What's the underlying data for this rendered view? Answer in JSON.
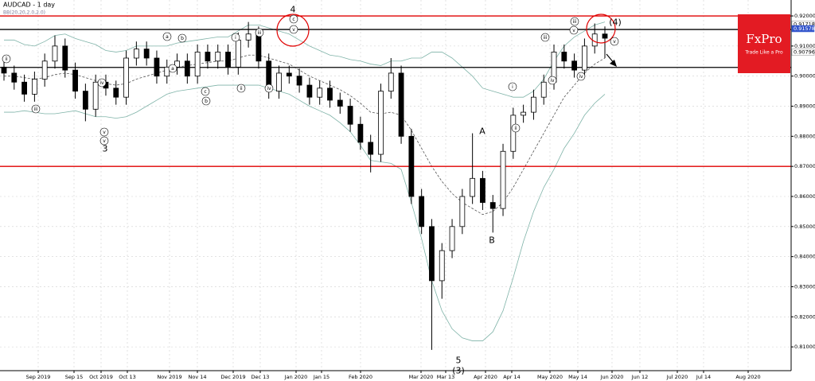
{
  "chart_data": {
    "type": "candlestick",
    "title": "AUDCAD - 1 day",
    "subtitle": "BB(20,20,2.0,2.0)",
    "logo": {
      "name": "FxPro",
      "tagline": "Trade Like a Pro"
    },
    "open": [
      0.903,
      0.901,
      0.898,
      0.894,
      0.899,
      0.905,
      0.91,
      0.902,
      0.895,
      0.889,
      0.898,
      0.896,
      0.893,
      0.906,
      0.909,
      0.906,
      0.9,
      0.903,
      0.905,
      0.9,
      0.908,
      0.905,
      0.908,
      0.903,
      0.912,
      0.914,
      0.905,
      0.895,
      0.901,
      0.9,
      0.897,
      0.893,
      0.896,
      0.892,
      0.89,
      0.884,
      0.878,
      0.874,
      0.895,
      0.901,
      0.88,
      0.86,
      0.85,
      0.832,
      0.842,
      0.85,
      0.86,
      0.866,
      0.858,
      0.856,
      0.875,
      0.887,
      0.888,
      0.893,
      0.898,
      0.908,
      0.905,
      0.902,
      0.91,
      0.914
    ],
    "high": [
      0.9055,
      0.9035,
      0.9005,
      0.9015,
      0.9075,
      0.9135,
      0.9125,
      0.9045,
      0.8975,
      0.9005,
      0.9005,
      0.8985,
      0.9085,
      0.9115,
      0.9115,
      0.9085,
      0.9055,
      0.9075,
      0.9075,
      0.9105,
      0.9105,
      0.9105,
      0.9105,
      0.9145,
      0.918,
      0.9165,
      0.9075,
      0.9035,
      0.9035,
      0.9025,
      0.8995,
      0.8985,
      0.8985,
      0.8945,
      0.8925,
      0.8865,
      0.8805,
      0.8975,
      0.906,
      0.9035,
      0.8825,
      0.8625,
      0.8525,
      0.8445,
      0.8525,
      0.8625,
      0.881,
      0.8685,
      0.8605,
      0.8775,
      0.8895,
      0.8905,
      0.8955,
      0.9005,
      0.9105,
      0.9105,
      0.9075,
      0.9125,
      0.9175,
      0.9165
    ],
    "low": [
      0.8985,
      0.8955,
      0.8915,
      0.8915,
      0.8965,
      0.9025,
      0.8995,
      0.8925,
      0.885,
      0.8865,
      0.8935,
      0.8905,
      0.8905,
      0.9035,
      0.9035,
      0.8975,
      0.8975,
      0.9005,
      0.8975,
      0.8975,
      0.9025,
      0.9025,
      0.9005,
      0.9005,
      0.9095,
      0.9025,
      0.8925,
      0.8925,
      0.8975,
      0.8945,
      0.8905,
      0.8905,
      0.8895,
      0.8875,
      0.8815,
      0.8755,
      0.868,
      0.8715,
      0.8925,
      0.8775,
      0.8575,
      0.8475,
      0.809,
      0.826,
      0.8395,
      0.8475,
      0.8575,
      0.8555,
      0.848,
      0.8535,
      0.8725,
      0.8845,
      0.8855,
      0.8905,
      0.8955,
      0.9025,
      0.8995,
      0.8995,
      0.9075,
      0.906
    ],
    "close": [
      0.901,
      0.898,
      0.894,
      0.899,
      0.905,
      0.91,
      0.902,
      0.895,
      0.889,
      0.898,
      0.896,
      0.893,
      0.906,
      0.909,
      0.906,
      0.9,
      0.903,
      0.905,
      0.9,
      0.908,
      0.905,
      0.908,
      0.903,
      0.912,
      0.914,
      0.905,
      0.895,
      0.901,
      0.9,
      0.897,
      0.893,
      0.896,
      0.892,
      0.89,
      0.884,
      0.878,
      0.874,
      0.895,
      0.901,
      0.88,
      0.86,
      0.85,
      0.832,
      0.842,
      0.85,
      0.86,
      0.866,
      0.858,
      0.856,
      0.875,
      0.887,
      0.888,
      0.893,
      0.898,
      0.908,
      0.905,
      0.902,
      0.91,
      0.914,
      0.9126
    ],
    "bands": [
      {
        "color": "#7fb3a8",
        "dash": false,
        "values": [
          0.912,
          0.912,
          0.9105,
          0.91,
          0.9115,
          0.9135,
          0.914,
          0.9125,
          0.9115,
          0.9105,
          0.9085,
          0.908,
          0.9085,
          0.91,
          0.91,
          0.91,
          0.91,
          0.911,
          0.9115,
          0.912,
          0.9125,
          0.913,
          0.913,
          0.915,
          0.917,
          0.917,
          0.916,
          0.915,
          0.914,
          0.912,
          0.91,
          0.9085,
          0.907,
          0.9065,
          0.9055,
          0.905,
          0.904,
          0.9035,
          0.905,
          0.905,
          0.906,
          0.906,
          0.908,
          0.908,
          0.906,
          0.903,
          0.9,
          0.896,
          0.895,
          0.894,
          0.893,
          0.893,
          0.895,
          0.899,
          0.905,
          0.91,
          0.913,
          0.915,
          0.917,
          0.918
        ]
      },
      {
        "color": "#555555",
        "dash": true,
        "values": [
          0.9,
          0.9,
          0.8995,
          0.899,
          0.8995,
          0.9005,
          0.901,
          0.9005,
          0.8995,
          0.8985,
          0.8975,
          0.897,
          0.8975,
          0.899,
          0.9,
          0.901,
          0.902,
          0.903,
          0.9035,
          0.904,
          0.9045,
          0.905,
          0.905,
          0.906,
          0.907,
          0.907,
          0.906,
          0.905,
          0.904,
          0.902,
          0.9,
          0.8985,
          0.897,
          0.8955,
          0.8935,
          0.891,
          0.888,
          0.8875,
          0.888,
          0.887,
          0.882,
          0.876,
          0.87,
          0.865,
          0.861,
          0.858,
          0.856,
          0.854,
          0.855,
          0.858,
          0.863,
          0.869,
          0.875,
          0.881,
          0.887,
          0.893,
          0.897,
          0.901,
          0.904,
          0.906
        ]
      },
      {
        "color": "#7fb3a8",
        "dash": false,
        "values": [
          0.888,
          0.888,
          0.8885,
          0.888,
          0.8875,
          0.8875,
          0.888,
          0.8885,
          0.8875,
          0.8865,
          0.8865,
          0.886,
          0.8865,
          0.888,
          0.89,
          0.892,
          0.894,
          0.895,
          0.8955,
          0.896,
          0.8965,
          0.897,
          0.897,
          0.897,
          0.897,
          0.897,
          0.896,
          0.895,
          0.894,
          0.892,
          0.89,
          0.8885,
          0.887,
          0.8845,
          0.8815,
          0.877,
          0.872,
          0.8715,
          0.871,
          0.869,
          0.858,
          0.846,
          0.832,
          0.822,
          0.816,
          0.813,
          0.812,
          0.812,
          0.815,
          0.822,
          0.833,
          0.845,
          0.855,
          0.863,
          0.869,
          0.876,
          0.881,
          0.887,
          0.891,
          0.894
        ]
      }
    ],
    "levels": [
      {
        "value": 0.92,
        "color": "#e00000"
      },
      {
        "value": 0.9155,
        "color": "#000000"
      },
      {
        "value": 0.9029,
        "color": "#000000"
      },
      {
        "value": 0.87,
        "color": "#e00000"
      }
    ],
    "price_labels": [
      0.91718,
      0.91578,
      0.90796
    ],
    "ylim": [
      0.8021,
      0.9253
    ],
    "yticks": [
      {
        "value": 0.92,
        "label": "0.92000"
      },
      {
        "value": 0.91,
        "label": "0.91000"
      },
      {
        "value": 0.9,
        "label": "0.90000"
      },
      {
        "value": 0.89,
        "label": "0.89000"
      },
      {
        "value": 0.88,
        "label": "0.88000"
      },
      {
        "value": 0.87,
        "label": "0.87000"
      },
      {
        "value": 0.86,
        "label": "0.86000"
      },
      {
        "value": 0.85,
        "label": "0.85000"
      },
      {
        "value": 0.84,
        "label": "0.84000"
      },
      {
        "value": 0.83,
        "label": "0.83000"
      },
      {
        "value": 0.82,
        "label": "0.82000"
      },
      {
        "value": 0.81,
        "label": "0.81000"
      }
    ],
    "xtick_labels": [
      "Sep 2019",
      "Sep 15",
      "Oct 2019",
      "Oct 13",
      "Nov 2019",
      "Nov 14",
      "Dec 2019",
      "Dec 13",
      "Jan 2020",
      "Jan 15",
      "Feb 2020",
      "Mar 2020",
      "Mar 13",
      "Apr 2020",
      "Apr 14",
      "May 2020",
      "May 14",
      "Jun 2020",
      "Jun 12",
      "Jul 2020",
      "Jul 14",
      "Aug 2020"
    ],
    "annotations": [
      "ii",
      "iii",
      "iv",
      "v",
      "v",
      "3",
      "a",
      "b",
      "a",
      "c",
      "b",
      "i",
      "iii",
      "ii",
      "iv",
      "4",
      "c",
      "v",
      "5",
      "(3)",
      "A",
      "B",
      "i",
      "ii",
      "iii",
      "iv",
      "v",
      "iii",
      "iv",
      "(4)",
      "v"
    ]
  }
}
